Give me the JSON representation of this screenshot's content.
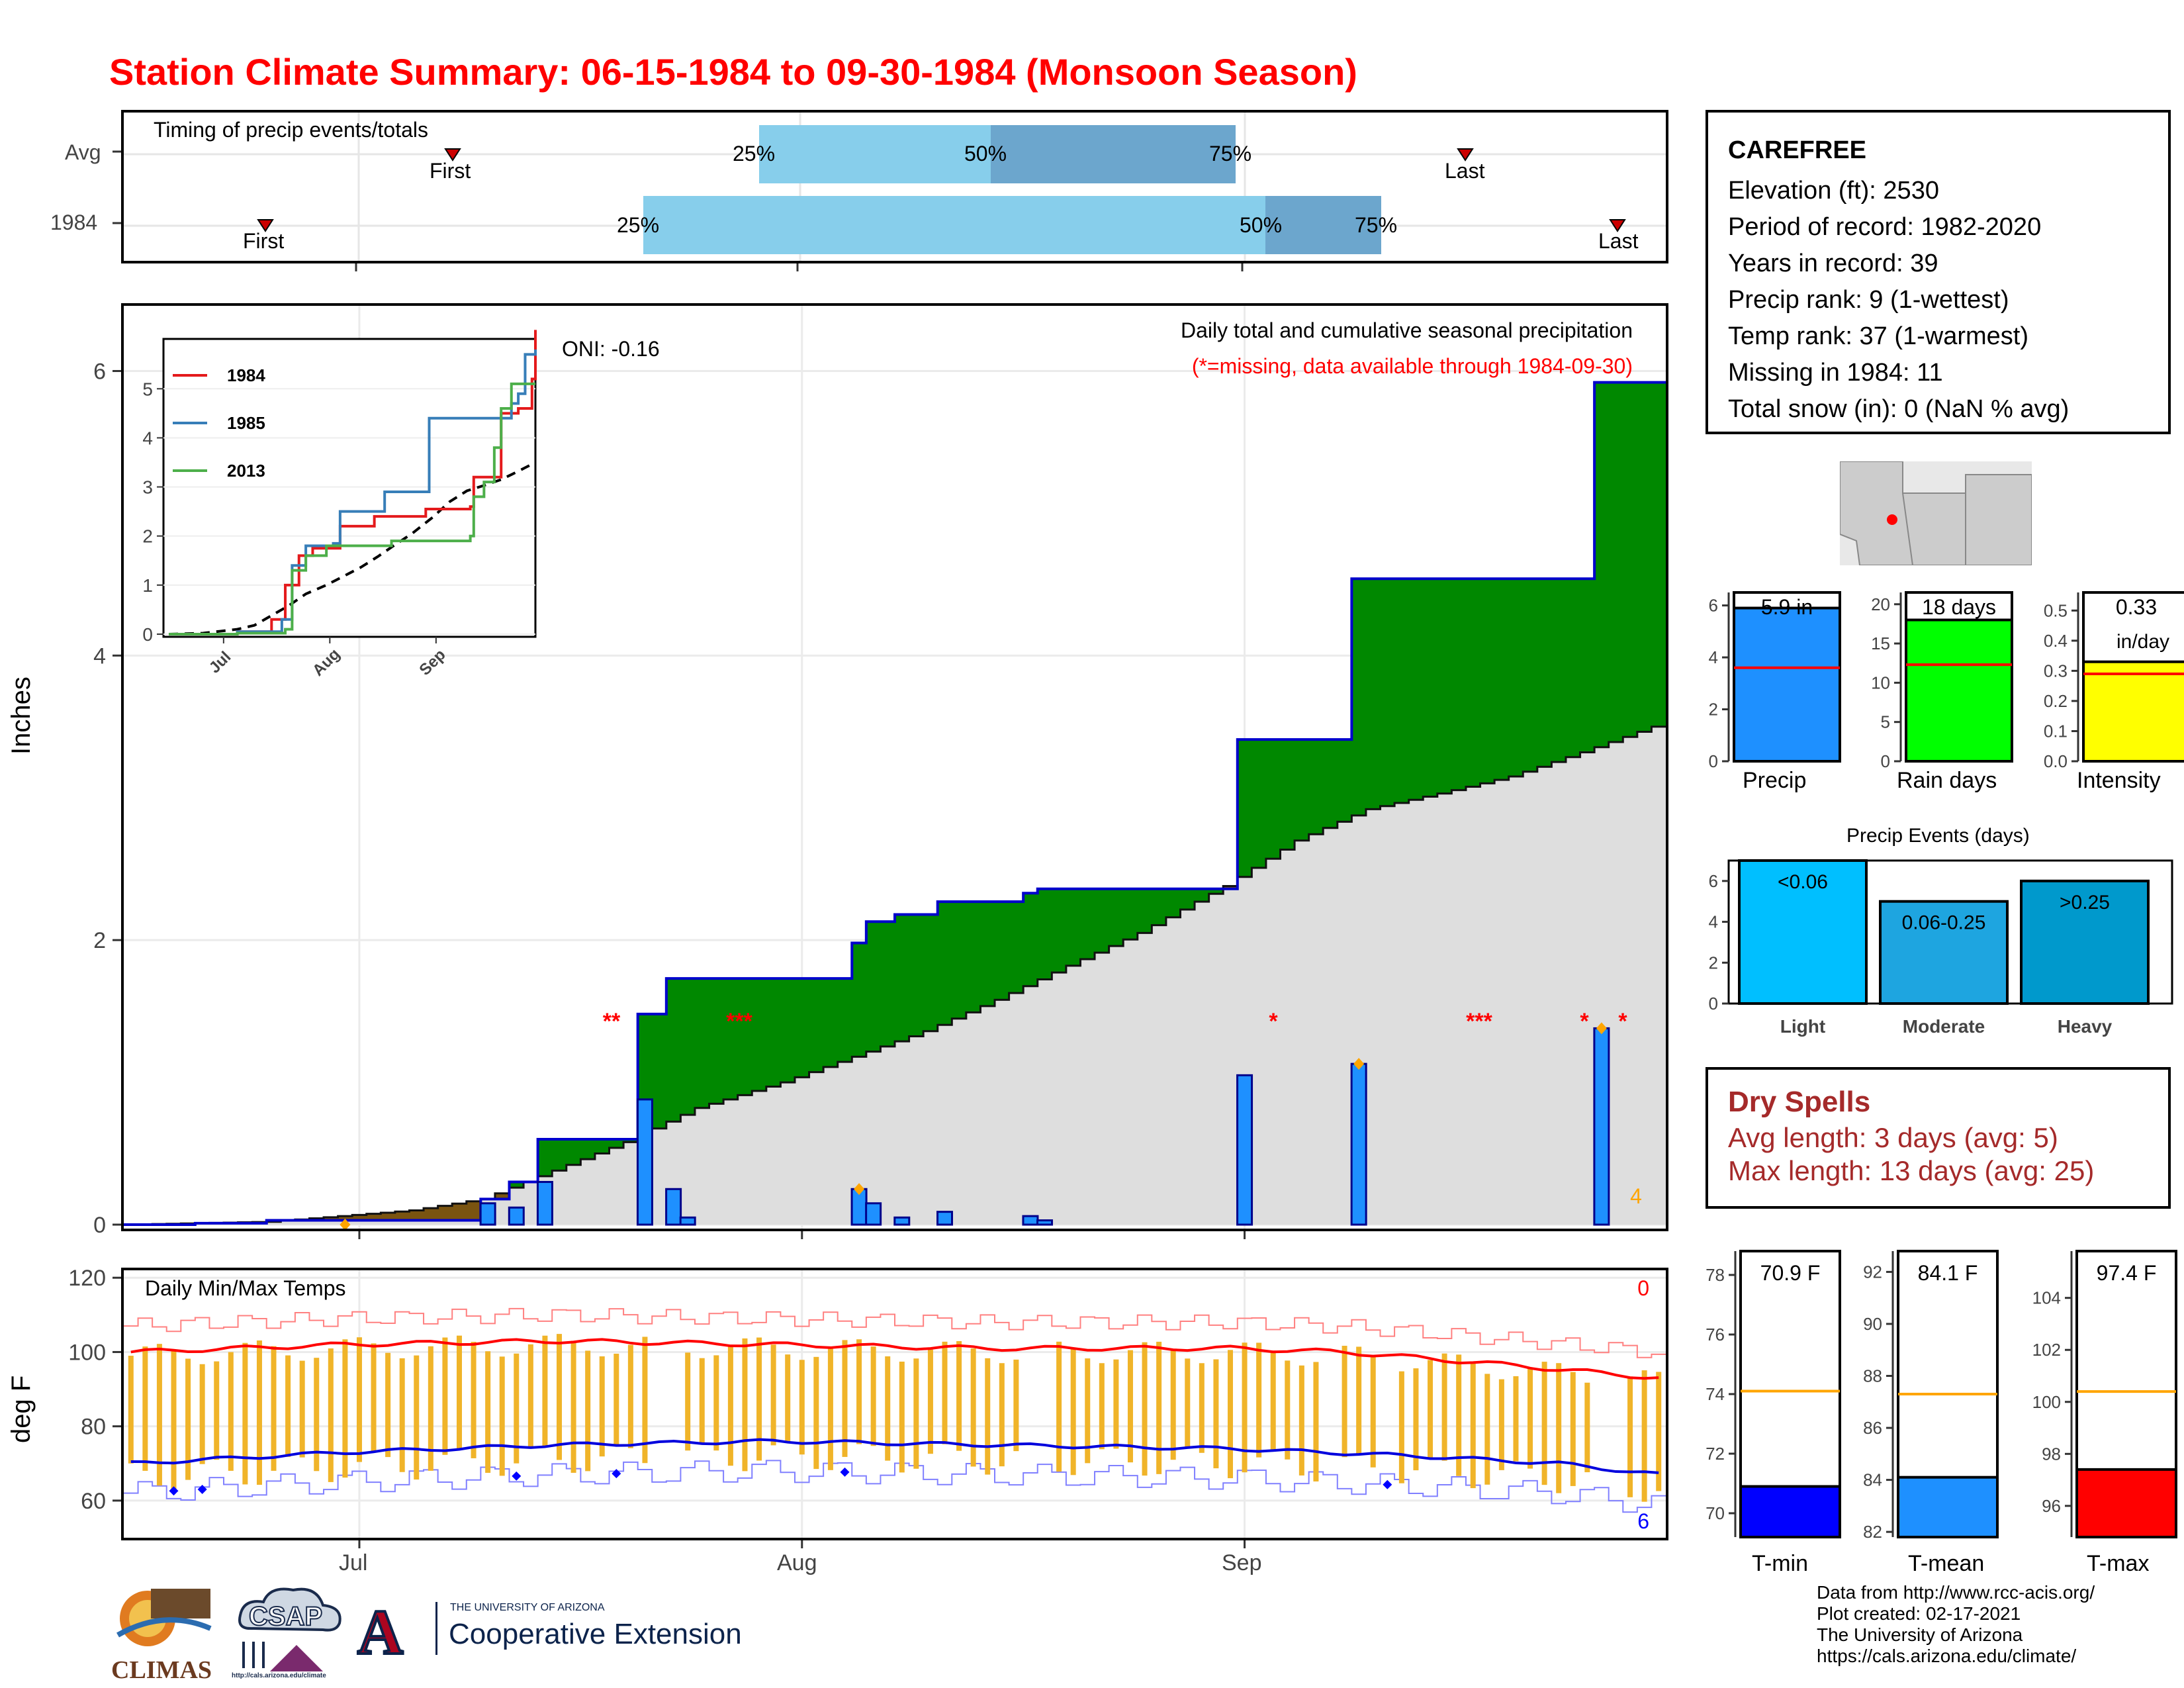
{
  "title": "Station Climate Summary: 06-15-1984 to 09-30-1984 (Monsoon Season)",
  "timing": {
    "label": "Timing of precip events/totals",
    "rows": [
      "Avg",
      "1984"
    ],
    "avg": {
      "first": "First",
      "last": "Last",
      "p25": "25%",
      "p50": "50%",
      "p75": "75%"
    },
    "y1984": {
      "first": "First",
      "last": "Last",
      "p25": "25%",
      "p50": "50%",
      "p75": "75%"
    }
  },
  "station": {
    "name": "CAREFREE",
    "elevation": "Elevation (ft): 2530",
    "period": "Period of record: 1982-2020",
    "years": "Years in record: 39",
    "precip_rank": "Precip rank: 9 (1-wettest)",
    "temp_rank": "Temp rank: 37 (1-warmest)",
    "missing": "Missing in 1984: 11",
    "snow": "Total snow (in): 0 (NaN % avg)"
  },
  "main_panel": {
    "ylabel": "Inches",
    "oni": "ONI: -0.16",
    "subtitle": "Daily total and cumulative seasonal precipitation",
    "missing_note": "(*=missing, data available through 1984-09-30)",
    "count_label": "4",
    "missing_marks": [
      "**",
      "***",
      "*",
      "***",
      "*",
      "*"
    ]
  },
  "inset": {
    "legend": [
      "1984",
      "1985",
      "2013"
    ],
    "colors": {
      "1984": "#e41a1c",
      "1985": "#377eb8",
      "2013": "#4daf4a"
    }
  },
  "temp_panel": {
    "ylabel": "deg F",
    "label": "Daily Min/Max Temps",
    "top_count": "0",
    "bottom_count": "6"
  },
  "xaxis_months": [
    "Jul",
    "Aug",
    "Sep"
  ],
  "summary_bars": {
    "precip": {
      "label": "Precip",
      "value_label": "5.9 in",
      "value": 5.9,
      "avg": 3.6
    },
    "rain_days": {
      "label": "Rain days",
      "value_label": "18 days",
      "value": 18,
      "avg": 12.3
    },
    "intensity": {
      "label": "Intensity",
      "value_label": "0.33",
      "unit": "in/day",
      "value": 0.33,
      "avg": 0.29
    }
  },
  "events": {
    "title": "Precip Events (days)",
    "bars": [
      {
        "label": "Light",
        "range": "<0.06",
        "value": 7,
        "color": "#00bfff"
      },
      {
        "label": "Moderate",
        "range": "0.06-0.25",
        "value": 5,
        "color": "#1ea5e0"
      },
      {
        "label": "Heavy",
        "range": ">0.25",
        "value": 6,
        "color": "#0099cc"
      }
    ]
  },
  "dry_spells": {
    "title": "Dry Spells",
    "avg": "Avg length: 3 days (avg: 5)",
    "max": "Max length: 13 days (avg: 25)"
  },
  "temps": {
    "tmin": {
      "label": "T-min",
      "value_label": "70.9 F",
      "value": 70.9,
      "avg": 74.1,
      "color": "#0000ff"
    },
    "tmean": {
      "label": "T-mean",
      "value_label": "84.1 F",
      "value": 84.1,
      "avg": 87.3,
      "color": "#1e90ff"
    },
    "tmax": {
      "label": "T-max",
      "value_label": "97.4 F",
      "value": 97.4,
      "avg": 100.4,
      "color": "#ff0000"
    }
  },
  "credits": [
    "Data from http://www.rcc-acis.org/",
    "Plot created: 02-17-2021",
    "The University of Arizona",
    "https://cals.arizona.edu/climate/"
  ],
  "logos": {
    "climas": "CLIMAS",
    "csap": "CSAP",
    "csap_url": "http://cals.arizona.edu/climate",
    "ua_small": "THE UNIVERSITY OF ARIZONA",
    "ua_big": "Cooperative Extension",
    "ua_letter": "A"
  },
  "chart_data": {
    "type": "area",
    "title": "Daily total and cumulative seasonal precipitation",
    "ylabel": "Inches",
    "ylim": [
      0,
      6.3
    ],
    "xlim": [
      "1984-06-15",
      "1984-09-30"
    ],
    "daily_precip": [
      {
        "date": "1984-07-10",
        "value": 0.15
      },
      {
        "date": "1984-07-12",
        "value": 0.12
      },
      {
        "date": "1984-07-14",
        "value": 0.3
      },
      {
        "date": "1984-07-21",
        "value": 0.88
      },
      {
        "date": "1984-07-23",
        "value": 0.25
      },
      {
        "date": "1984-07-24",
        "value": 0.05
      },
      {
        "date": "1984-08-05",
        "value": 0.25
      },
      {
        "date": "1984-08-06",
        "value": 0.15
      },
      {
        "date": "1984-08-08",
        "value": 0.05
      },
      {
        "date": "1984-08-11",
        "value": 0.09
      },
      {
        "date": "1984-08-17",
        "value": 0.06
      },
      {
        "date": "1984-08-18",
        "value": 0.03
      },
      {
        "date": "1984-09-01",
        "value": 1.05
      },
      {
        "date": "1984-09-09",
        "value": 1.13
      },
      {
        "date": "1984-09-26",
        "value": 1.38
      }
    ],
    "cumulative_1984": [
      [
        "1984-06-15",
        0
      ],
      [
        "1984-06-20",
        0.01
      ],
      [
        "1984-06-25",
        0.03
      ],
      [
        "1984-07-10",
        0.18
      ],
      [
        "1984-07-12",
        0.3
      ],
      [
        "1984-07-14",
        0.6
      ],
      [
        "1984-07-21",
        1.48
      ],
      [
        "1984-07-23",
        1.73
      ],
      [
        "1984-08-05",
        1.98
      ],
      [
        "1984-08-06",
        2.13
      ],
      [
        "1984-08-08",
        2.18
      ],
      [
        "1984-08-11",
        2.27
      ],
      [
        "1984-08-17",
        2.33
      ],
      [
        "1984-08-18",
        2.36
      ],
      [
        "1984-09-01",
        3.41
      ],
      [
        "1984-09-09",
        4.54
      ],
      [
        "1984-09-26",
        5.92
      ],
      [
        "1984-09-30",
        5.92
      ]
    ],
    "cumulative_avg": [
      [
        "1984-06-15",
        0
      ],
      [
        "1984-06-25",
        0.02
      ],
      [
        "1984-07-05",
        0.1
      ],
      [
        "1984-07-10",
        0.18
      ],
      [
        "1984-07-15",
        0.38
      ],
      [
        "1984-07-20",
        0.58
      ],
      [
        "1984-07-25",
        0.82
      ],
      [
        "1984-07-31",
        1.0
      ],
      [
        "1984-08-05",
        1.18
      ],
      [
        "1984-08-10",
        1.36
      ],
      [
        "1984-08-15",
        1.58
      ],
      [
        "1984-08-20",
        1.82
      ],
      [
        "1984-08-25",
        2.05
      ],
      [
        "1984-08-31",
        2.38
      ],
      [
        "1984-09-05",
        2.7
      ],
      [
        "1984-09-10",
        2.92
      ],
      [
        "1984-09-15",
        3.03
      ],
      [
        "1984-09-20",
        3.15
      ],
      [
        "1984-09-25",
        3.32
      ],
      [
        "1984-09-30",
        3.5
      ]
    ],
    "temps": {
      "ylim": [
        50,
        122
      ],
      "ylabel": "deg F",
      "avg_max": [
        [
          0,
          100
        ],
        [
          15,
          102
        ],
        [
          30,
          103
        ],
        [
          45,
          102
        ],
        [
          60,
          101
        ],
        [
          77,
          101
        ],
        [
          85,
          100
        ],
        [
          95,
          97
        ],
        [
          107,
          93
        ]
      ],
      "avg_min": [
        [
          0,
          70
        ],
        [
          15,
          73
        ],
        [
          30,
          75
        ],
        [
          45,
          76
        ],
        [
          60,
          75
        ],
        [
          77,
          74
        ],
        [
          90,
          72
        ],
        [
          100,
          70
        ],
        [
          107,
          67
        ]
      ]
    }
  }
}
